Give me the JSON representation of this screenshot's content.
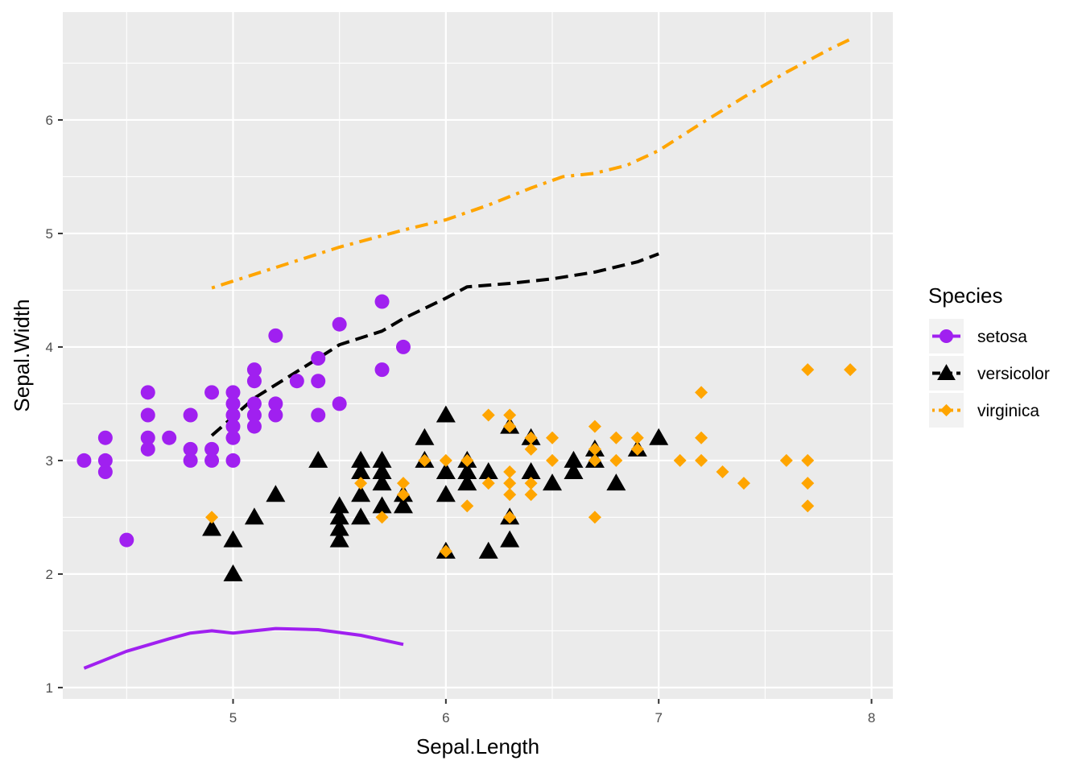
{
  "chart_data": {
    "type": "scatter",
    "title": "",
    "xlabel": "Sepal.Length",
    "ylabel": "Sepal.Width",
    "xlim": [
      4.2,
      8.1
    ],
    "ylim": [
      0.9,
      6.95
    ],
    "x_ticks": [
      5,
      6,
      7,
      8
    ],
    "y_ticks": [
      1,
      2,
      3,
      4,
      5,
      6
    ],
    "grid": true,
    "panel_background": "#ebebeb",
    "legend": {
      "title": "Species",
      "position": "right"
    },
    "series": [
      {
        "name": "setosa",
        "color": "#a020f0",
        "marker": "circle",
        "line_style": "solid",
        "points": [
          [
            4.3,
            3.0
          ],
          [
            4.4,
            3.2
          ],
          [
            4.4,
            3.0
          ],
          [
            4.4,
            2.9
          ],
          [
            4.5,
            2.3
          ],
          [
            4.6,
            3.6
          ],
          [
            4.6,
            3.4
          ],
          [
            4.6,
            3.2
          ],
          [
            4.6,
            3.1
          ],
          [
            4.7,
            3.2
          ],
          [
            4.8,
            3.4
          ],
          [
            4.8,
            3.1
          ],
          [
            4.8,
            3.0
          ],
          [
            4.9,
            3.6
          ],
          [
            4.9,
            3.1
          ],
          [
            4.9,
            3.0
          ],
          [
            5.0,
            3.6
          ],
          [
            5.0,
            3.5
          ],
          [
            5.0,
            3.4
          ],
          [
            5.0,
            3.3
          ],
          [
            5.0,
            3.2
          ],
          [
            5.0,
            3.0
          ],
          [
            5.1,
            3.8
          ],
          [
            5.1,
            3.7
          ],
          [
            5.1,
            3.5
          ],
          [
            5.1,
            3.4
          ],
          [
            5.1,
            3.3
          ],
          [
            5.2,
            4.1
          ],
          [
            5.2,
            3.5
          ],
          [
            5.2,
            3.4
          ],
          [
            5.3,
            3.7
          ],
          [
            5.4,
            3.9
          ],
          [
            5.4,
            3.7
          ],
          [
            5.4,
            3.4
          ],
          [
            5.5,
            4.2
          ],
          [
            5.5,
            3.5
          ],
          [
            5.7,
            4.4
          ],
          [
            5.7,
            3.8
          ],
          [
            5.8,
            4.0
          ]
        ],
        "trend": [
          [
            4.3,
            1.17
          ],
          [
            4.5,
            1.32
          ],
          [
            4.7,
            1.43
          ],
          [
            4.8,
            1.48
          ],
          [
            4.9,
            1.5
          ],
          [
            5.0,
            1.48
          ],
          [
            5.1,
            1.5
          ],
          [
            5.2,
            1.52
          ],
          [
            5.4,
            1.51
          ],
          [
            5.6,
            1.46
          ],
          [
            5.8,
            1.38
          ]
        ]
      },
      {
        "name": "versicolor",
        "color": "#000000",
        "marker": "triangle",
        "line_style": "dashed",
        "points": [
          [
            4.9,
            2.4
          ],
          [
            5.0,
            2.3
          ],
          [
            5.0,
            2.0
          ],
          [
            5.1,
            2.5
          ],
          [
            5.2,
            2.7
          ],
          [
            5.4,
            3.0
          ],
          [
            5.5,
            2.6
          ],
          [
            5.5,
            2.5
          ],
          [
            5.5,
            2.4
          ],
          [
            5.5,
            2.3
          ],
          [
            5.6,
            3.0
          ],
          [
            5.6,
            2.9
          ],
          [
            5.6,
            2.7
          ],
          [
            5.6,
            2.5
          ],
          [
            5.7,
            3.0
          ],
          [
            5.7,
            2.9
          ],
          [
            5.7,
            2.8
          ],
          [
            5.7,
            2.6
          ],
          [
            5.8,
            2.7
          ],
          [
            5.8,
            2.6
          ],
          [
            5.9,
            3.2
          ],
          [
            5.9,
            3.0
          ],
          [
            6.0,
            3.4
          ],
          [
            6.0,
            2.9
          ],
          [
            6.0,
            2.7
          ],
          [
            6.0,
            2.2
          ],
          [
            6.1,
            3.0
          ],
          [
            6.1,
            2.9
          ],
          [
            6.1,
            2.8
          ],
          [
            6.2,
            2.9
          ],
          [
            6.2,
            2.2
          ],
          [
            6.3,
            3.3
          ],
          [
            6.3,
            2.5
          ],
          [
            6.3,
            2.3
          ],
          [
            6.4,
            3.2
          ],
          [
            6.4,
            2.9
          ],
          [
            6.5,
            2.8
          ],
          [
            6.6,
            3.0
          ],
          [
            6.6,
            2.9
          ],
          [
            6.7,
            3.1
          ],
          [
            6.7,
            3.0
          ],
          [
            6.8,
            2.8
          ],
          [
            6.9,
            3.1
          ],
          [
            7.0,
            3.2
          ]
        ],
        "trend": [
          [
            4.9,
            3.22
          ],
          [
            5.1,
            3.55
          ],
          [
            5.4,
            3.9
          ],
          [
            5.5,
            4.02
          ],
          [
            5.7,
            4.14
          ],
          [
            5.8,
            4.25
          ],
          [
            6.0,
            4.43
          ],
          [
            6.1,
            4.53
          ],
          [
            6.3,
            4.56
          ],
          [
            6.5,
            4.6
          ],
          [
            6.7,
            4.66
          ],
          [
            6.9,
            4.75
          ],
          [
            7.0,
            4.82
          ]
        ]
      },
      {
        "name": "virginica",
        "color": "#ffa500",
        "marker": "diamond",
        "line_style": "dotdash",
        "points": [
          [
            4.9,
            2.5
          ],
          [
            5.6,
            2.8
          ],
          [
            5.7,
            2.5
          ],
          [
            5.8,
            2.8
          ],
          [
            5.8,
            2.7
          ],
          [
            5.9,
            3.0
          ],
          [
            6.0,
            3.0
          ],
          [
            6.0,
            2.2
          ],
          [
            6.1,
            3.0
          ],
          [
            6.1,
            2.6
          ],
          [
            6.2,
            3.4
          ],
          [
            6.2,
            2.8
          ],
          [
            6.3,
            3.4
          ],
          [
            6.3,
            3.3
          ],
          [
            6.3,
            2.9
          ],
          [
            6.3,
            2.8
          ],
          [
            6.3,
            2.7
          ],
          [
            6.3,
            2.5
          ],
          [
            6.4,
            3.2
          ],
          [
            6.4,
            3.1
          ],
          [
            6.4,
            2.8
          ],
          [
            6.4,
            2.7
          ],
          [
            6.5,
            3.2
          ],
          [
            6.5,
            3.0
          ],
          [
            6.7,
            3.3
          ],
          [
            6.7,
            3.1
          ],
          [
            6.7,
            3.0
          ],
          [
            6.7,
            2.5
          ],
          [
            6.8,
            3.2
          ],
          [
            6.8,
            3.0
          ],
          [
            6.9,
            3.2
          ],
          [
            6.9,
            3.1
          ],
          [
            7.1,
            3.0
          ],
          [
            7.2,
            3.6
          ],
          [
            7.2,
            3.2
          ],
          [
            7.2,
            3.0
          ],
          [
            7.3,
            2.9
          ],
          [
            7.4,
            2.8
          ],
          [
            7.6,
            3.0
          ],
          [
            7.7,
            3.8
          ],
          [
            7.7,
            3.0
          ],
          [
            7.7,
            2.8
          ],
          [
            7.7,
            2.6
          ],
          [
            7.9,
            3.8
          ]
        ],
        "trend": [
          [
            4.9,
            4.52
          ],
          [
            5.2,
            4.7
          ],
          [
            5.5,
            4.88
          ],
          [
            5.8,
            5.03
          ],
          [
            6.0,
            5.12
          ],
          [
            6.2,
            5.25
          ],
          [
            6.4,
            5.4
          ],
          [
            6.55,
            5.5
          ],
          [
            6.7,
            5.53
          ],
          [
            6.85,
            5.6
          ],
          [
            7.0,
            5.73
          ],
          [
            7.2,
            5.97
          ],
          [
            7.4,
            6.2
          ],
          [
            7.6,
            6.42
          ],
          [
            7.8,
            6.62
          ],
          [
            7.9,
            6.71
          ]
        ]
      }
    ]
  }
}
